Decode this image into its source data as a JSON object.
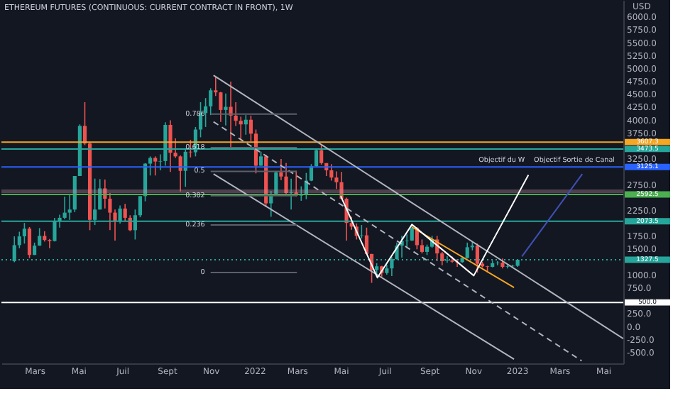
{
  "chart_data": {
    "type": "candlestick",
    "title": "ETHEREUM FUTURES (CONTINUOUS: CURRENT CONTRACT IN FRONT), 1W",
    "ylabel": "USD",
    "x": [
      "2021-02-01",
      "2021-02-08",
      "2021-02-15",
      "2021-02-22",
      "2021-03-01",
      "2021-03-08",
      "2021-03-15",
      "2021-03-22",
      "2021-03-29",
      "2021-04-05",
      "2021-04-12",
      "2021-04-19",
      "2021-04-26",
      "2021-05-03",
      "2021-05-10",
      "2021-05-17",
      "2021-05-24",
      "2021-05-31",
      "2021-06-07",
      "2021-06-14",
      "2021-06-21",
      "2021-06-28",
      "2021-07-05",
      "2021-07-12",
      "2021-07-19",
      "2021-07-26",
      "2021-08-02",
      "2021-08-09",
      "2021-08-16",
      "2021-08-23",
      "2021-08-30",
      "2021-09-06",
      "2021-09-13",
      "2021-09-20",
      "2021-09-27",
      "2021-10-04",
      "2021-10-11",
      "2021-10-18",
      "2021-10-25",
      "2021-11-01",
      "2021-11-08",
      "2021-11-15",
      "2021-11-22",
      "2021-11-29",
      "2021-12-06",
      "2021-12-13",
      "2021-12-20",
      "2021-12-27",
      "2022-01-03",
      "2022-01-10",
      "2022-01-17",
      "2022-01-24",
      "2022-01-31",
      "2022-02-07",
      "2022-02-14",
      "2022-02-21",
      "2022-02-28",
      "2022-03-07",
      "2022-03-14",
      "2022-03-21",
      "2022-03-28",
      "2022-04-04",
      "2022-04-11",
      "2022-04-18",
      "2022-04-25",
      "2022-05-02",
      "2022-05-09",
      "2022-05-16",
      "2022-05-23",
      "2022-05-30",
      "2022-06-06",
      "2022-06-13",
      "2022-06-20",
      "2022-06-27",
      "2022-07-04",
      "2022-07-11",
      "2022-07-18",
      "2022-07-25",
      "2022-08-01",
      "2022-08-08",
      "2022-08-15",
      "2022-08-22",
      "2022-08-29",
      "2022-09-05",
      "2022-09-12",
      "2022-09-19",
      "2022-09-26",
      "2022-10-03",
      "2022-10-10",
      "2022-10-17",
      "2022-10-24",
      "2022-10-31",
      "2022-11-07",
      "2022-11-14",
      "2022-11-21",
      "2022-11-28",
      "2022-12-05",
      "2022-12-12",
      "2022-12-19",
      "2022-12-26",
      "2023-01-02"
    ],
    "ohlc": [
      [
        1300,
        1780,
        1280,
        1610
      ],
      [
        1610,
        1870,
        1550,
        1780
      ],
      [
        1780,
        2040,
        1640,
        1930
      ],
      [
        1930,
        1960,
        1360,
        1420
      ],
      [
        1420,
        1660,
        1420,
        1600
      ],
      [
        1600,
        1940,
        1600,
        1790
      ],
      [
        1790,
        1880,
        1680,
        1710
      ],
      [
        1710,
        1730,
        1550,
        1690
      ],
      [
        1690,
        2140,
        1680,
        2080
      ],
      [
        2080,
        2200,
        1950,
        2140
      ],
      [
        2140,
        2550,
        2110,
        2240
      ],
      [
        2240,
        2580,
        2100,
        2300
      ],
      [
        2300,
        2950,
        2250,
        2950
      ],
      [
        2950,
        3950,
        2950,
        3920
      ],
      [
        3920,
        4380,
        3550,
        3580
      ],
      [
        3580,
        3600,
        1900,
        2100
      ],
      [
        2100,
        2900,
        2000,
        2300
      ],
      [
        2300,
        2890,
        2300,
        2710
      ],
      [
        2710,
        2880,
        2320,
        2510
      ],
      [
        2510,
        2620,
        1900,
        2240
      ],
      [
        2240,
        2300,
        1700,
        2080
      ],
      [
        2080,
        2380,
        2030,
        2320
      ],
      [
        2320,
        2410,
        2080,
        2140
      ],
      [
        2140,
        2190,
        1880,
        1900
      ],
      [
        1900,
        2300,
        1720,
        2190
      ],
      [
        2190,
        2560,
        2150,
        2560
      ],
      [
        2560,
        3200,
        2460,
        3190
      ],
      [
        3190,
        3330,
        2960,
        3300
      ],
      [
        3300,
        3330,
        2960,
        3230
      ],
      [
        3230,
        3370,
        3060,
        3240
      ],
      [
        3240,
        3990,
        3150,
        3940
      ],
      [
        3940,
        4030,
        3030,
        3400
      ],
      [
        3400,
        3680,
        3300,
        3330
      ],
      [
        3330,
        3350,
        2650,
        3050
      ],
      [
        3050,
        3490,
        2740,
        3420
      ],
      [
        3420,
        3650,
        3310,
        3410
      ],
      [
        3410,
        3900,
        3330,
        3850
      ],
      [
        3850,
        4380,
        3700,
        4170
      ],
      [
        4170,
        4460,
        3900,
        4300
      ],
      [
        4300,
        4650,
        4130,
        4610
      ],
      [
        4610,
        4870,
        4500,
        4570
      ],
      [
        4570,
        4580,
        4000,
        4230
      ],
      [
        4230,
        4550,
        3930,
        4290
      ],
      [
        4290,
        4780,
        3500,
        4120
      ],
      [
        4120,
        4380,
        3920,
        4020
      ],
      [
        4020,
        4100,
        3640,
        3950
      ],
      [
        3950,
        4130,
        3750,
        4040
      ],
      [
        4040,
        4120,
        3620,
        3770
      ],
      [
        3770,
        3850,
        3000,
        3150
      ],
      [
        3150,
        3420,
        3150,
        3330
      ],
      [
        3330,
        3360,
        2350,
        2420
      ],
      [
        2420,
        2660,
        2160,
        2600
      ],
      [
        2600,
        3040,
        2600,
        3020
      ],
      [
        3020,
        3280,
        2870,
        2940
      ],
      [
        2940,
        3200,
        2570,
        2620
      ],
      [
        2620,
        2900,
        2300,
        2630
      ],
      [
        2630,
        3050,
        2550,
        2570
      ],
      [
        2570,
        2750,
        2470,
        2590
      ],
      [
        2590,
        3010,
        2500,
        2860
      ],
      [
        2860,
        3180,
        2850,
        3140
      ],
      [
        3140,
        3480,
        3120,
        3450
      ],
      [
        3450,
        3550,
        3170,
        3200
      ],
      [
        3200,
        3200,
        2950,
        3060
      ],
      [
        3060,
        3180,
        2860,
        2920
      ],
      [
        2920,
        3040,
        2700,
        2830
      ],
      [
        2830,
        3030,
        2510,
        2510
      ],
      [
        2510,
        2530,
        1700,
        2040
      ],
      [
        2040,
        2160,
        1910,
        1970
      ],
      [
        1970,
        2030,
        1720,
        1790
      ],
      [
        1790,
        2000,
        1740,
        1800
      ],
      [
        1800,
        1950,
        1440,
        1440
      ],
      [
        1440,
        1440,
        880,
        1130
      ],
      [
        1130,
        1260,
        1000,
        1200
      ],
      [
        1200,
        1210,
        1000,
        1070
      ],
      [
        1070,
        1230,
        1040,
        1160
      ],
      [
        1160,
        1380,
        1010,
        1340
      ],
      [
        1340,
        1660,
        1330,
        1600
      ],
      [
        1600,
        1790,
        1370,
        1690
      ],
      [
        1690,
        1820,
        1550,
        1700
      ],
      [
        1700,
        2020,
        1690,
        1940
      ],
      [
        1940,
        1960,
        1530,
        1610
      ],
      [
        1610,
        1720,
        1450,
        1480
      ],
      [
        1480,
        1620,
        1420,
        1580
      ],
      [
        1580,
        1790,
        1560,
        1720
      ],
      [
        1720,
        1790,
        1300,
        1450
      ],
      [
        1450,
        1480,
        1220,
        1300
      ],
      [
        1300,
        1400,
        1270,
        1310
      ],
      [
        1310,
        1390,
        1270,
        1290
      ],
      [
        1290,
        1340,
        1190,
        1280
      ],
      [
        1280,
        1370,
        1270,
        1360
      ],
      [
        1360,
        1660,
        1350,
        1570
      ],
      [
        1570,
        1680,
        1510,
        1600
      ],
      [
        1600,
        1640,
        1080,
        1250
      ],
      [
        1250,
        1290,
        1180,
        1200
      ],
      [
        1200,
        1210,
        1080,
        1190
      ],
      [
        1190,
        1310,
        1180,
        1260
      ],
      [
        1260,
        1300,
        1220,
        1270
      ],
      [
        1270,
        1350,
        1160,
        1190
      ],
      [
        1190,
        1230,
        1160,
        1200
      ],
      [
        1200,
        1230,
        1180,
        1210
      ],
      [
        1210,
        1340,
        1190,
        1327.5
      ]
    ],
    "colors": [
      "#26a69a",
      "#26a69a",
      "#26a69a",
      "#ef5350",
      "#26a69a",
      "#26a69a",
      "#ef5350",
      "#ef5350",
      "#26a69a",
      "#26a69a",
      "#26a69a",
      "#26a69a",
      "#26a69a",
      "#26a69a",
      "#ef5350",
      "#ef5350",
      "#26a69a",
      "#26a69a",
      "#ef5350",
      "#ef5350",
      "#ef5350",
      "#26a69a",
      "#ef5350",
      "#ef5350",
      "#26a69a",
      "#26a69a",
      "#26a69a",
      "#26a69a",
      "#ef5350",
      "#26a69a",
      "#26a69a",
      "#ef5350",
      "#ef5350",
      "#ef5350",
      "#26a69a",
      "#ef5350",
      "#26a69a",
      "#26a69a",
      "#26a69a",
      "#26a69a",
      "#ef5350",
      "#ef5350",
      "#26a69a",
      "#ef5350",
      "#ef5350",
      "#ef5350",
      "#26a69a",
      "#ef5350",
      "#ef5350",
      "#26a69a",
      "#ef5350",
      "#26a69a",
      "#26a69a",
      "#ef5350",
      "#ef5350",
      "#26a69a",
      "#ef5350",
      "#26a69a",
      "#26a69a",
      "#26a69a",
      "#26a69a",
      "#ef5350",
      "#ef5350",
      "#ef5350",
      "#ef5350",
      "#ef5350",
      "#ef5350",
      "#ef5350",
      "#ef5350",
      "#26a69a",
      "#ef5350",
      "#ef5350",
      "#26a69a",
      "#ef5350",
      "#26a69a",
      "#26a69a",
      "#26a69a",
      "#26a69a",
      "#26a69a",
      "#26a69a",
      "#ef5350",
      "#ef5350",
      "#26a69a",
      "#26a69a",
      "#ef5350",
      "#ef5350",
      "#26a69a",
      "#ef5350",
      "#ef5350",
      "#26a69a",
      "#26a69a",
      "#26a69a",
      "#ef5350",
      "#ef5350",
      "#ef5350",
      "#26a69a",
      "#26a69a",
      "#ef5350",
      "#26a69a",
      "#26a69a",
      "#26a69a"
    ],
    "series": [
      {
        "type": "line",
        "color": "#b2b5be",
        "x": [
          "2021-11-05",
          "2023-05-29"
        ],
        "values": [
          4900,
          -200
        ]
      },
      {
        "type": "line",
        "color": "#b2b5be",
        "line_style": "dashed",
        "x": [
          "2021-11-05",
          "2023-04-01"
        ],
        "values": [
          4000,
          -630
        ]
      },
      {
        "type": "line",
        "color": "#b2b5be",
        "x": [
          "2021-11-05",
          "2022-12-28"
        ],
        "values": [
          2990,
          -600
        ]
      },
      {
        "type": "line",
        "color": "#f5a623",
        "x": [
          "2022-08-08",
          "2022-12-28"
        ],
        "values": [
          1960,
          790
        ]
      },
      {
        "type": "line",
        "color": "#ffffff",
        "x": [
          "2022-05-01",
          "2022-06-21",
          "2022-08-08",
          "2022-11-02",
          "2023-01-17"
        ],
        "values": [
          2560,
          980,
          2010,
          1020,
          2970
        ]
      },
      {
        "type": "line",
        "color": "#3f51b5",
        "x": [
          "2023-01-08",
          "2023-04-02"
        ],
        "values": [
          1390,
          2990
        ]
      },
      {
        "type": "line",
        "color": "#5d606b",
        "x": [
          "2021-11-01",
          "2022-03-01"
        ],
        "values": [
          4150,
          4150
        ]
      },
      {
        "type": "line",
        "color": "#5d606b",
        "x": [
          "2021-11-01",
          "2022-03-01"
        ],
        "values": [
          3500,
          3500
        ]
      },
      {
        "type": "line",
        "color": "#5d606b",
        "x": [
          "2021-11-01",
          "2022-03-01"
        ],
        "values": [
          3040,
          3040
        ]
      },
      {
        "type": "line",
        "color": "#5d606b",
        "x": [
          "2021-11-01",
          "2022-03-01"
        ],
        "values": [
          2570,
          2570
        ]
      },
      {
        "type": "line",
        "color": "#5d606b",
        "x": [
          "2021-11-01",
          "2022-03-01"
        ],
        "values": [
          2000,
          2000
        ]
      },
      {
        "type": "line",
        "color": "#5d606b",
        "x": [
          "2021-11-01",
          "2022-03-01"
        ],
        "values": [
          1080,
          1080
        ]
      }
    ],
    "ref_lines": [
      {
        "axis": "y",
        "value": 3607.3,
        "label": "3607.3",
        "color": "#f5a623"
      },
      {
        "axis": "y",
        "value": 3473.5,
        "label": "3473.5",
        "color": "#26a69a"
      },
      {
        "axis": "y",
        "value": 3125.1,
        "label": "3125.1",
        "color": "#2962ff"
      },
      {
        "axis": "y",
        "value": 2592.5,
        "label": "2592.5",
        "color": "#4caf50"
      },
      {
        "axis": "y",
        "value": 2073.5,
        "label": "2073.5",
        "color": "#26a69a"
      },
      {
        "axis": "y",
        "value": 1327.5,
        "label": "1327.5",
        "color": "#26a69a",
        "line_style": "dotted"
      },
      {
        "axis": "y",
        "value": 500,
        "label": "500.0",
        "color": "#ffffff"
      }
    ],
    "bands": [
      {
        "axis": "y",
        "from": 2620,
        "to": 2690,
        "color": "#c48b9f"
      }
    ],
    "annotations": [
      {
        "text": "Objectif du W",
        "x": "2023-01-20",
        "y": 3250
      },
      {
        "text": "Objectif Sortie de Canal",
        "x": "2023-05-25",
        "y": 3250
      },
      {
        "text": "0.786",
        "x": "2021-11-01",
        "y": 4150
      },
      {
        "text": "0.618",
        "x": "2021-11-01",
        "y": 3500
      },
      {
        "text": "0.5",
        "x": "2021-11-01",
        "y": 3040
      },
      {
        "text": "0.382",
        "x": "2021-11-01",
        "y": 2570
      },
      {
        "text": "0.236",
        "x": "2021-11-01",
        "y": 2000
      },
      {
        "text": "0",
        "x": "2021-11-01",
        "y": 1080
      }
    ],
    "xlim": [
      "2021-01-14",
      "2023-05-29"
    ],
    "xticks": [
      {
        "value": "2021-03-01",
        "label": "Mars"
      },
      {
        "value": "2021-05-01",
        "label": "Mai"
      },
      {
        "value": "2021-07-01",
        "label": "Juil"
      },
      {
        "value": "2021-09-01",
        "label": "Sept"
      },
      {
        "value": "2021-11-01",
        "label": "Nov"
      },
      {
        "value": "2022-01-01",
        "label": "2022"
      },
      {
        "value": "2022-03-01",
        "label": "Mars"
      },
      {
        "value": "2022-05-01",
        "label": "Mai"
      },
      {
        "value": "2022-07-01",
        "label": "Juil"
      },
      {
        "value": "2022-09-01",
        "label": "Sept"
      },
      {
        "value": "2022-11-01",
        "label": "Nov"
      },
      {
        "value": "2023-01-01",
        "label": "2023"
      },
      {
        "value": "2023-03-01",
        "label": "Mars"
      },
      {
        "value": "2023-05-01",
        "label": "Mai"
      }
    ],
    "ylim": [
      -680,
      6360
    ],
    "yticks": [
      {
        "value": 6000,
        "label": "6000.0"
      },
      {
        "value": 5750,
        "label": "5750.0"
      },
      {
        "value": 5500,
        "label": "5500.0"
      },
      {
        "value": 5250,
        "label": "5250.0"
      },
      {
        "value": 5000,
        "label": "5000.0"
      },
      {
        "value": 4750,
        "label": "4750.0"
      },
      {
        "value": 4500,
        "label": "4500.0"
      },
      {
        "value": 4250,
        "label": "4250.0"
      },
      {
        "value": 4000,
        "label": "4000.0"
      },
      {
        "value": 3750,
        "label": "3750.0"
      },
      {
        "value": 3250,
        "label": "3250.0"
      },
      {
        "value": 2750,
        "label": "2750.0"
      },
      {
        "value": 2250,
        "label": "2250.0"
      },
      {
        "value": 1750,
        "label": "1750.0"
      },
      {
        "value": 1500,
        "label": "1500.0"
      },
      {
        "value": 1000,
        "label": "1000.0"
      },
      {
        "value": 750,
        "label": "750.0"
      },
      {
        "value": 250,
        "label": "250.0"
      },
      {
        "value": 0,
        "label": "0.0"
      },
      {
        "value": -250,
        "label": "-250.0"
      },
      {
        "value": -500,
        "label": "-500.0"
      }
    ]
  }
}
